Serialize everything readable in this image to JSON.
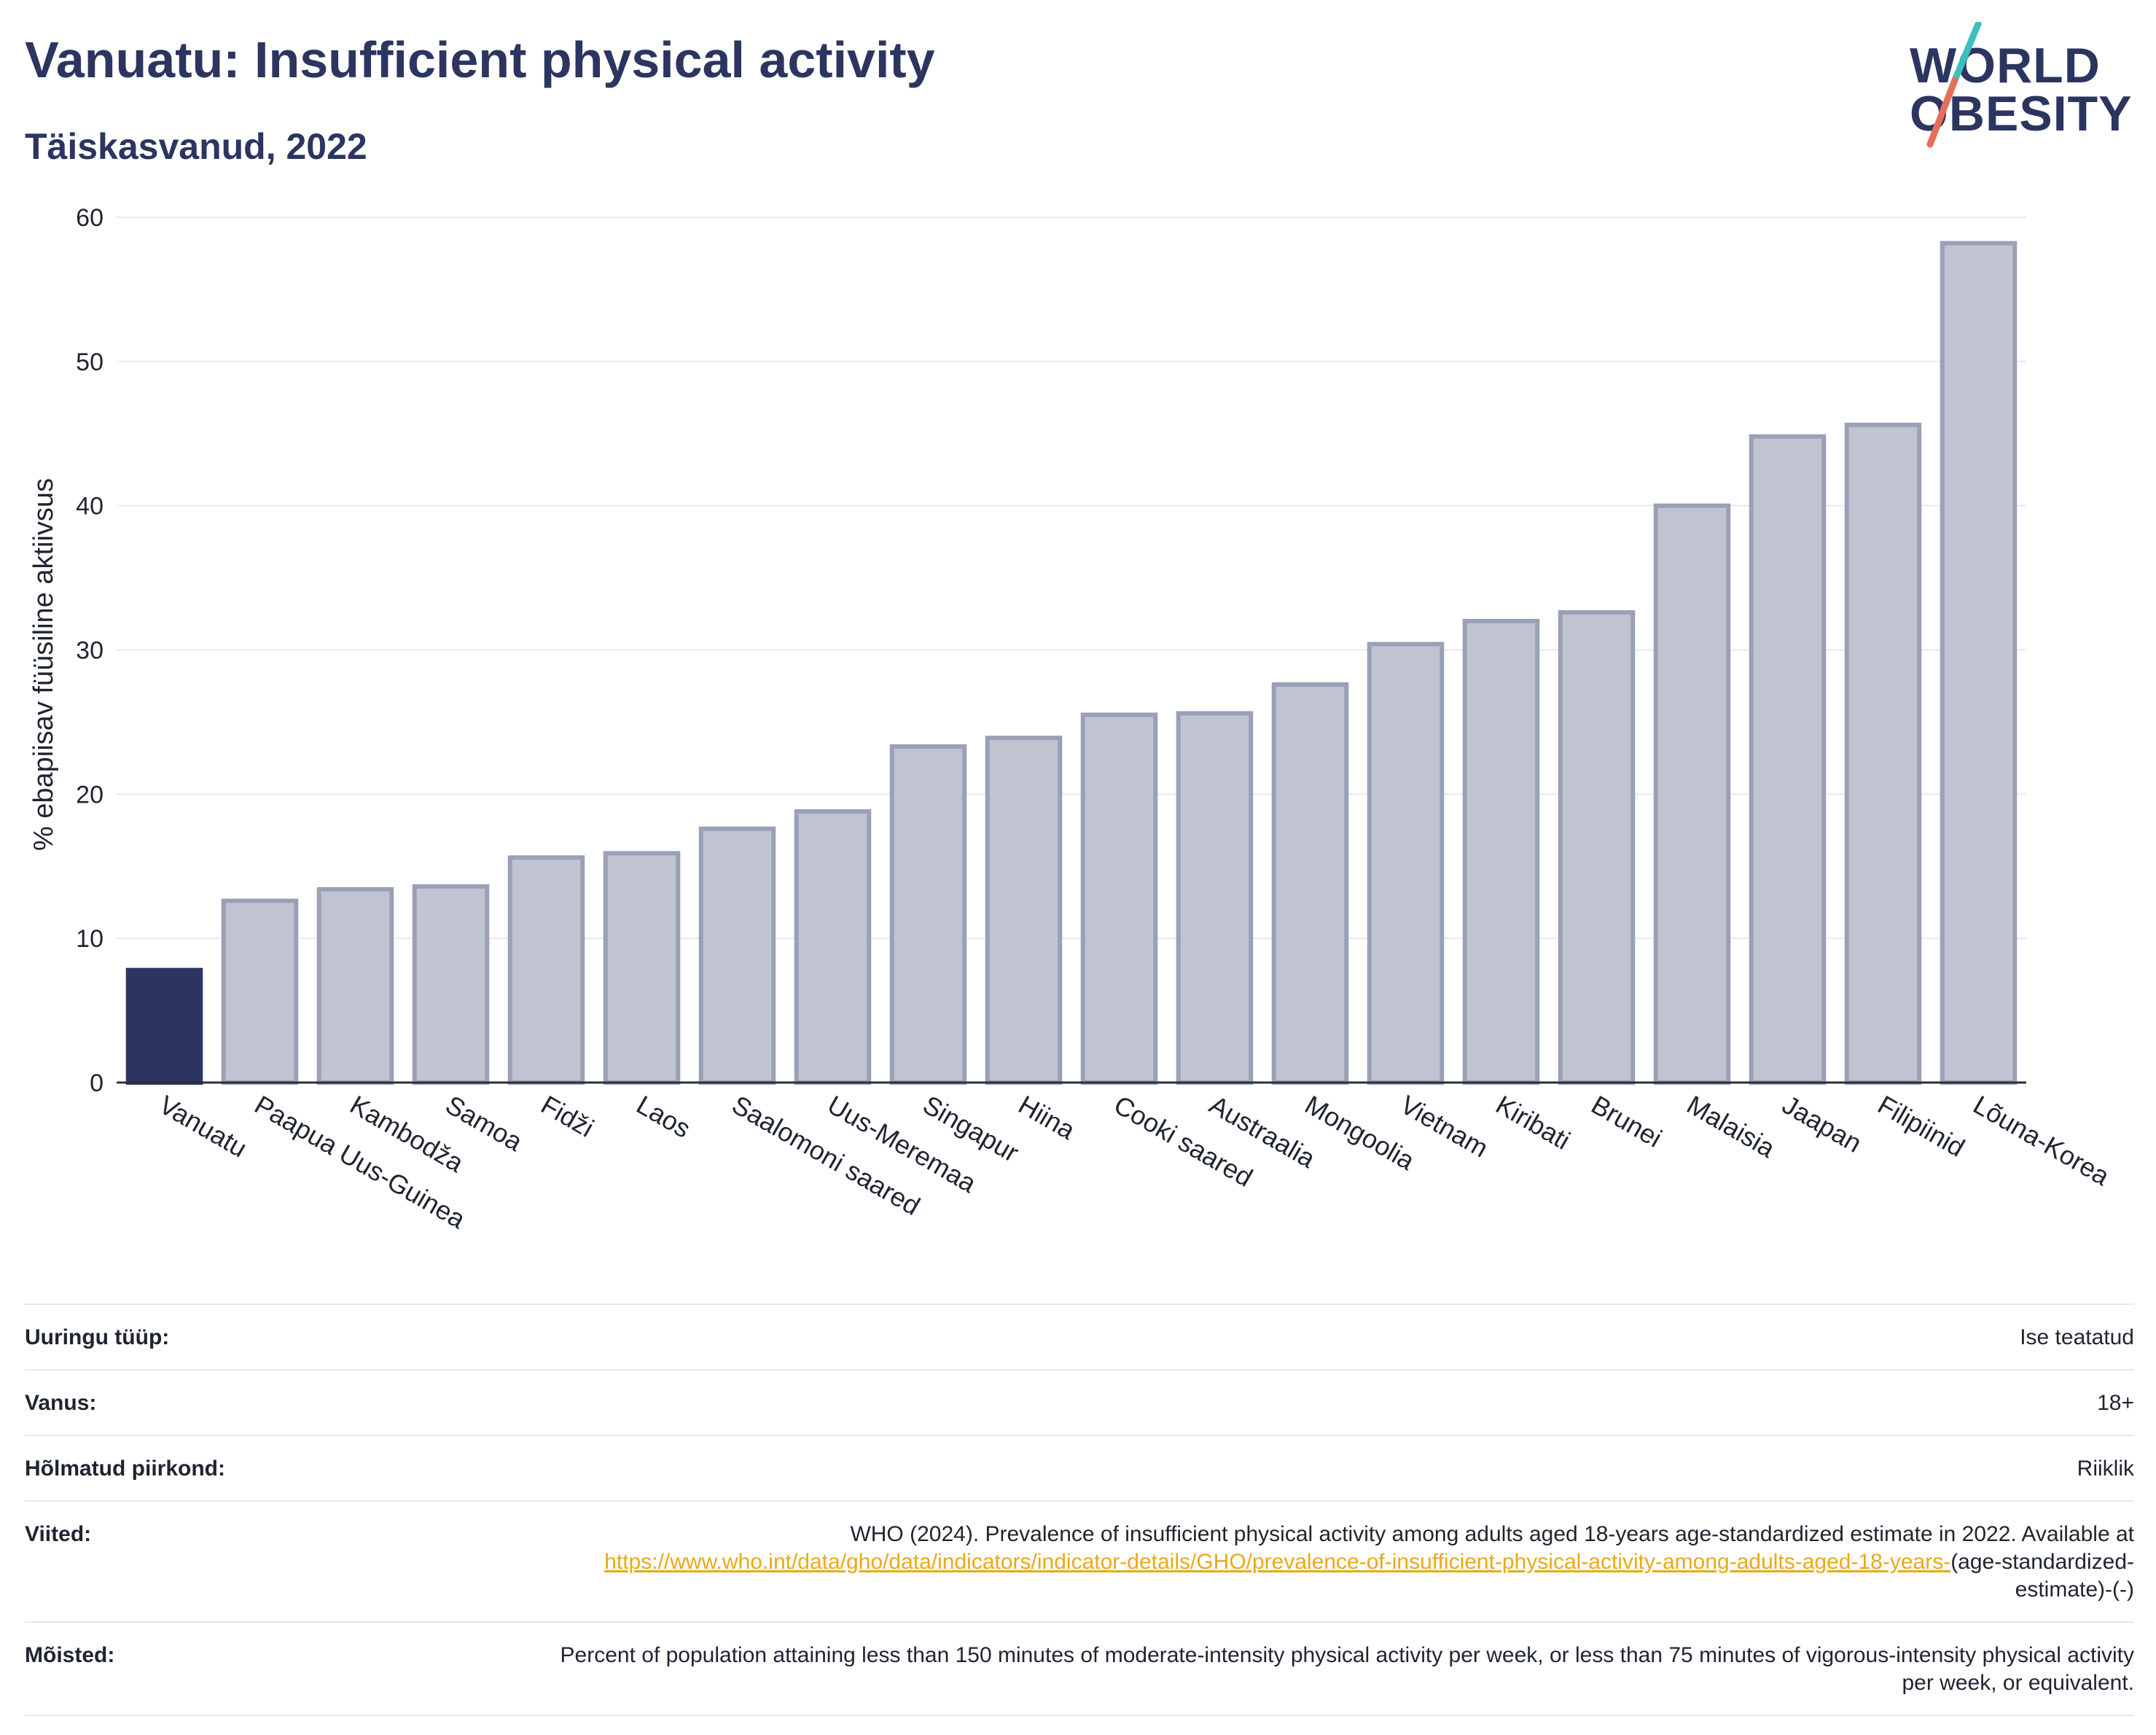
{
  "header": {
    "title": "Vanuatu: Insufficient physical activity",
    "subtitle": "Täiskasvanud, 2022"
  },
  "logo": {
    "line1": "WORLD",
    "line2": "OBESITY",
    "colors": {
      "text": "#2b3560",
      "slash_top": "#3bbfc0",
      "slash_bottom": "#e4705a"
    }
  },
  "chart_data": {
    "type": "bar",
    "ylabel": "% ebapiisav füüsiline aktiivsus",
    "xlabel": "",
    "ylim": [
      0,
      60
    ],
    "yticks": [
      0,
      10,
      20,
      30,
      40,
      50,
      60
    ],
    "grid": true,
    "highlight_category": "Vanuatu",
    "colors": {
      "highlight": "#2b3560",
      "bar_fill": "#c0c3d0",
      "bar_stroke": "#9aa0b6",
      "grid": "#e8e9ee"
    },
    "categories": [
      "Vanuatu",
      "Paapua Uus-Guinea",
      "Kambodža",
      "Samoa",
      "Fidži",
      "Laos",
      "Saalomoni saared",
      "Uus-Meremaa",
      "Singapur",
      "Hiina",
      "Cooki saared",
      "Austraalia",
      "Mongoolia",
      "Vietnam",
      "Kiribati",
      "Brunei",
      "Malaisia",
      "Jaapan",
      "Filipiinid",
      "Lõuna-Korea"
    ],
    "values": [
      7.8,
      12.6,
      13.4,
      13.6,
      15.6,
      15.9,
      17.6,
      18.8,
      23.3,
      23.9,
      25.5,
      25.6,
      27.6,
      30.4,
      32.0,
      32.6,
      40.0,
      44.8,
      45.6,
      58.2
    ]
  },
  "details": {
    "survey_type": {
      "label": "Uuringu tüüp:",
      "value": "Ise teatatud"
    },
    "age": {
      "label": "Vanus:",
      "value": "18+"
    },
    "region": {
      "label": "Hõlmatud piirkond:",
      "value": "Riiklik"
    },
    "references": {
      "label": "Viited:",
      "text": "WHO (2024). Prevalence of insufficient physical activity among adults aged 18-years age-standardized estimate in 2022. Available at",
      "link": "https://www.who.int/data/gho/data/indicators/indicator-details/GHO/prevalence-of-insufficient-physical-activity-among-adults-aged-18-years-",
      "suffix": "(age-standardized-estimate)-(-)"
    },
    "definitions": {
      "label": "Mõisted:",
      "value": "Percent of population attaining less than 150 minutes of moderate-intensity physical activity per week, or less than 75 minutes of vigorous-intensity physical activity per week, or equivalent."
    }
  }
}
